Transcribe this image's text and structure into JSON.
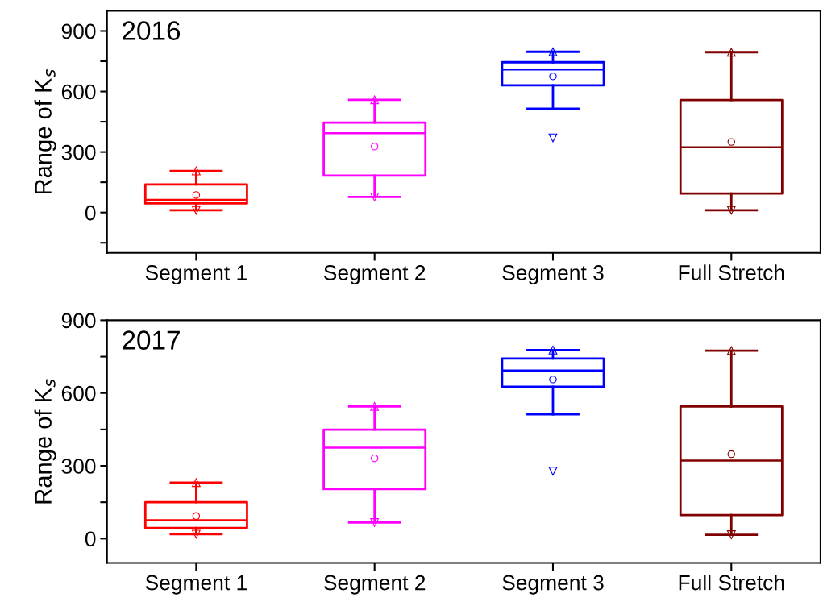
{
  "chart_data": [
    {
      "type": "box",
      "title": "2016",
      "ylabel": "Range of K$_{s}$",
      "categories": [
        "Segment 1",
        "Segment 2",
        "Segment 3",
        "Full Stretch"
      ],
      "colors": [
        "#ff0000",
        "#ff00ff",
        "#0000ff",
        "#800000"
      ],
      "boxes": [
        {
          "low": 11,
          "q1": 45,
          "median": 63,
          "q3": 139,
          "high": 206,
          "mean": 87,
          "outliers": [
            11,
            206
          ]
        },
        {
          "low": 77,
          "q1": 183,
          "median": 393,
          "q3": 446,
          "high": 559,
          "mean": 327,
          "outliers": [
            77,
            559
          ]
        },
        {
          "low": 515,
          "q1": 631,
          "median": 709,
          "q3": 745,
          "high": 797,
          "mean": 675,
          "outliers": [
            370,
            797
          ]
        },
        {
          "low": 11,
          "q1": 94,
          "median": 323,
          "q3": 558,
          "high": 795,
          "mean": 350,
          "outliers": [
            11,
            795
          ]
        }
      ],
      "ylim": [
        -200,
        1000
      ],
      "yticks": [
        {
          "value": -150,
          "label": null
        },
        0,
        {
          "value": 150,
          "label": null
        },
        300,
        {
          "value": 450,
          "label": null
        },
        600,
        {
          "value": 750,
          "label": null
        },
        900
      ],
      "grid": false
    },
    {
      "type": "box",
      "title": "2017",
      "ylabel": "Range of K$_{s}$",
      "categories": [
        "Segment 1",
        "Segment 2",
        "Segment 3",
        "Full Stretch"
      ],
      "colors": [
        "#ff0000",
        "#ff00ff",
        "#0000ff",
        "#800000"
      ],
      "boxes": [
        {
          "low": 18,
          "q1": 44,
          "median": 76,
          "q3": 150,
          "high": 231,
          "mean": 93,
          "outliers": [
            18,
            231
          ]
        },
        {
          "low": 66,
          "q1": 204,
          "median": 375,
          "q3": 449,
          "high": 545,
          "mean": 331,
          "outliers": [
            66,
            545
          ]
        },
        {
          "low": 512,
          "q1": 626,
          "median": 693,
          "q3": 742,
          "high": 777,
          "mean": 656,
          "outliers": [
            278,
            777
          ]
        },
        {
          "low": 16,
          "q1": 97,
          "median": 322,
          "q3": 545,
          "high": 775,
          "mean": 348,
          "outliers": [
            16,
            775
          ]
        }
      ],
      "ylim": [
        -100,
        900
      ],
      "yticks": [
        0,
        {
          "value": 150,
          "label": null
        },
        300,
        {
          "value": 450,
          "label": null
        },
        600,
        {
          "value": 750,
          "label": null
        },
        900
      ],
      "grid": false
    }
  ]
}
